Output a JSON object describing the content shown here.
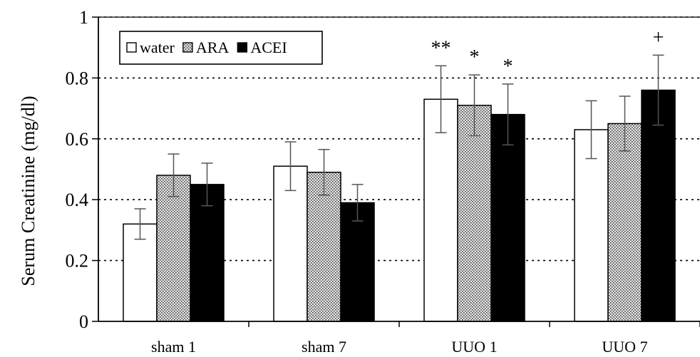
{
  "chart_data": {
    "type": "bar",
    "ylabel": "Serum Creatinine (mg/dl)",
    "xlabel": "",
    "ylim": [
      0,
      1
    ],
    "yticks": [
      "0",
      "0.2",
      "0.4",
      "0.6",
      "0.8",
      "1"
    ],
    "ytick_values": [
      0,
      0.2,
      0.4,
      0.6,
      0.8,
      1
    ],
    "grid": "dotted horizontal",
    "legend_position": "top-left",
    "categories": [
      "sham 1",
      "sham 7",
      "UUO 1",
      "UUO 7"
    ],
    "series": [
      {
        "name": "water",
        "fill": "white",
        "values": [
          0.32,
          0.51,
          0.73,
          0.63
        ],
        "errors": [
          0.05,
          0.08,
          0.11,
          0.095
        ]
      },
      {
        "name": "ARA",
        "fill": "dotted",
        "values": [
          0.48,
          0.49,
          0.71,
          0.65
        ],
        "errors": [
          0.07,
          0.075,
          0.1,
          0.09
        ]
      },
      {
        "name": "ACEI",
        "fill": "black",
        "values": [
          0.45,
          0.39,
          0.68,
          0.76
        ],
        "errors": [
          0.07,
          0.06,
          0.1,
          0.115
        ]
      }
    ],
    "annotations": [
      {
        "text": "**",
        "category": "UUO 1",
        "series": "water"
      },
      {
        "text": "*",
        "category": "UUO 1",
        "series": "ARA"
      },
      {
        "text": "*",
        "category": "UUO 1",
        "series": "ACEI"
      },
      {
        "text": "+",
        "category": "UUO 7",
        "series": "ACEI"
      }
    ]
  }
}
